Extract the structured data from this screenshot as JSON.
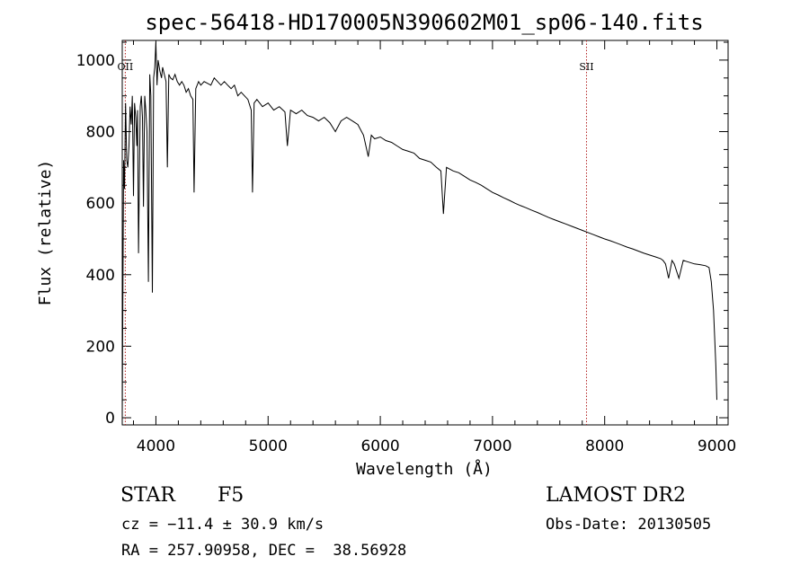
{
  "chart_data": {
    "type": "line",
    "title": "spec-56418-HD170005N390602M01_sp06-140.fits",
    "xlabel": "Wavelength (Å)",
    "ylabel": "Flux (relative)",
    "xlim": [
      3700,
      9100
    ],
    "ylim": [
      -20,
      1055
    ],
    "xticks": [
      4000,
      5000,
      6000,
      7000,
      8000,
      9000
    ],
    "yticks": [
      0,
      200,
      400,
      600,
      800,
      1000
    ],
    "tick_labels": {
      "x": [
        "4000",
        "5000",
        "6000",
        "7000",
        "8000",
        "9000"
      ],
      "y": [
        "0",
        "200",
        "400",
        "600",
        "800",
        "1000"
      ]
    },
    "grid": false,
    "line_color": "#000000",
    "marker_color": "#b22222",
    "line_markers": [
      {
        "label": "OII",
        "x": 3727
      },
      {
        "label": "SII",
        "x": 7838
      }
    ],
    "series": [
      {
        "x": [
          3700,
          3705,
          3712,
          3720,
          3730,
          3740,
          3750,
          3760,
          3770,
          3780,
          3790,
          3800,
          3810,
          3820,
          3830,
          3836,
          3845,
          3860,
          3870,
          3880,
          3889,
          3900,
          3910,
          3920,
          3933,
          3945,
          3955,
          3968,
          3980,
          3990,
          4000,
          4010,
          4020,
          4035,
          4050,
          4060,
          4075,
          4090,
          4102,
          4115,
          4130,
          4150,
          4170,
          4190,
          4210,
          4230,
          4250,
          4270,
          4290,
          4310,
          4330,
          4340,
          4355,
          4380,
          4400,
          4430,
          4460,
          4490,
          4520,
          4550,
          4580,
          4610,
          4640,
          4670,
          4700,
          4730,
          4760,
          4790,
          4820,
          4850,
          4861,
          4875,
          4900,
          4950,
          5000,
          5050,
          5100,
          5150,
          5172,
          5200,
          5250,
          5300,
          5350,
          5400,
          5450,
          5500,
          5550,
          5600,
          5650,
          5700,
          5750,
          5800,
          5850,
          5893,
          5920,
          5950,
          6000,
          6050,
          6100,
          6150,
          6200,
          6250,
          6300,
          6350,
          6400,
          6450,
          6500,
          6540,
          6563,
          6590,
          6620,
          6650,
          6700,
          6750,
          6800,
          6850,
          6900,
          6950,
          7000,
          7050,
          7100,
          7150,
          7200,
          7250,
          7300,
          7350,
          7400,
          7450,
          7500,
          7550,
          7600,
          7650,
          7700,
          7750,
          7800,
          7850,
          7900,
          7950,
          8000,
          8050,
          8100,
          8150,
          8200,
          8250,
          8300,
          8350,
          8400,
          8450,
          8498,
          8520,
          8542,
          8570,
          8600,
          8620,
          8662,
          8700,
          8750,
          8800,
          8850,
          8900,
          8930,
          8950,
          8970,
          8990,
          9000
        ],
        "y": [
          0,
          300,
          720,
          640,
          880,
          720,
          700,
          760,
          870,
          820,
          900,
          620,
          880,
          840,
          760,
          860,
          460,
          870,
          900,
          840,
          590,
          900,
          860,
          800,
          380,
          960,
          900,
          350,
          950,
          980,
          1050,
          930,
          1000,
          970,
          950,
          980,
          960,
          940,
          700,
          960,
          950,
          945,
          960,
          940,
          930,
          940,
          930,
          910,
          920,
          900,
          890,
          630,
          920,
          940,
          930,
          940,
          935,
          930,
          950,
          940,
          930,
          940,
          930,
          920,
          930,
          900,
          910,
          900,
          890,
          860,
          630,
          880,
          890,
          870,
          880,
          860,
          870,
          855,
          760,
          860,
          850,
          860,
          845,
          840,
          830,
          840,
          825,
          800,
          830,
          840,
          830,
          820,
          790,
          730,
          790,
          780,
          785,
          775,
          770,
          760,
          750,
          745,
          740,
          725,
          720,
          715,
          700,
          690,
          570,
          700,
          695,
          690,
          685,
          675,
          665,
          658,
          650,
          640,
          630,
          623,
          615,
          608,
          600,
          593,
          587,
          580,
          574,
          567,
          560,
          554,
          548,
          542,
          536,
          530,
          524,
          518,
          512,
          506,
          500,
          495,
          489,
          483,
          477,
          472,
          466,
          460,
          455,
          450,
          445,
          440,
          430,
          390,
          440,
          430,
          390,
          440,
          435,
          430,
          428,
          425,
          420,
          380,
          300,
          150,
          50
        ]
      }
    ]
  },
  "info": {
    "object_class": "STAR",
    "subclass": "F5",
    "redshift": "cz = −11.4 ± 30.9 km/s",
    "coordinates": "RA = 257.90958, DEC =  38.56928",
    "survey": "LAMOST DR2",
    "obs_date": "Obs-Date: 20130505"
  }
}
